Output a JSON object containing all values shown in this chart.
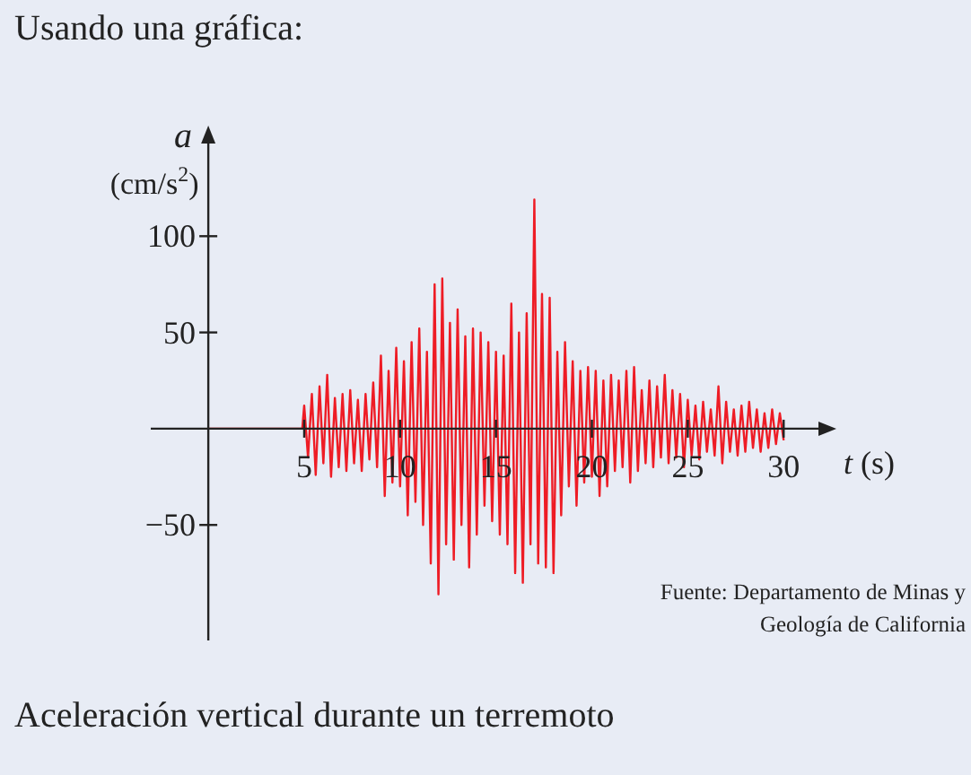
{
  "chart_data": {
    "type": "line",
    "title": "Usando una gráfica:",
    "xlabel": "t (s)",
    "ylabel": "a (cm/s$^{2}$)",
    "annotations": [
      "Fuente: Departamento de Minas y\nGeología de California",
      "Aceleración vertical durante un terremoto"
    ],
    "xlim": [
      -3,
      32
    ],
    "ylim": [
      -110,
      150
    ],
    "xticks": [
      5,
      10,
      15,
      20,
      25,
      30
    ],
    "yticks": [
      {
        "value": -50,
        "label": "−50"
      },
      50,
      100
    ],
    "grid": false,
    "marker": "none",
    "line_style": "solid",
    "series": [
      {
        "color": "#ee1c25",
        "x": [
          0,
          4.5,
          4.9,
          5.0,
          5.2,
          5.4,
          5.6,
          5.8,
          6.0,
          6.2,
          6.4,
          6.6,
          6.8,
          7.0,
          7.2,
          7.4,
          7.6,
          7.8,
          8.0,
          8.2,
          8.4,
          8.6,
          8.8,
          9.0,
          9.2,
          9.4,
          9.6,
          9.8,
          10.0,
          10.2,
          10.4,
          10.6,
          10.8,
          11.0,
          11.2,
          11.4,
          11.6,
          11.8,
          12.0,
          12.2,
          12.4,
          12.6,
          12.8,
          13.0,
          13.2,
          13.4,
          13.6,
          13.8,
          14.0,
          14.2,
          14.4,
          14.6,
          14.8,
          15.0,
          15.2,
          15.4,
          15.6,
          15.8,
          16.0,
          16.2,
          16.4,
          16.6,
          16.8,
          17.0,
          17.2,
          17.4,
          17.6,
          17.8,
          18.0,
          18.2,
          18.4,
          18.6,
          18.8,
          19.0,
          19.2,
          19.4,
          19.6,
          19.8,
          20.0,
          20.2,
          20.4,
          20.6,
          20.8,
          21.0,
          21.2,
          21.4,
          21.6,
          21.8,
          22.0,
          22.2,
          22.4,
          22.6,
          22.8,
          23.0,
          23.2,
          23.4,
          23.6,
          23.8,
          24.0,
          24.2,
          24.4,
          24.6,
          24.8,
          25.0,
          25.2,
          25.4,
          25.6,
          25.8,
          26.0,
          26.2,
          26.4,
          26.6,
          26.8,
          27.0,
          27.2,
          27.4,
          27.6,
          27.8,
          28.0,
          28.2,
          28.4,
          28.6,
          28.8,
          29.0,
          29.2,
          29.4,
          29.6,
          29.8,
          30.0
        ],
        "values": [
          0,
          0,
          0,
          12,
          -15,
          18,
          -24,
          22,
          -18,
          28,
          -25,
          16,
          -20,
          18,
          -22,
          20,
          -18,
          15,
          -22,
          18,
          -16,
          24,
          -20,
          38,
          -35,
          30,
          -28,
          42,
          -30,
          35,
          -45,
          45,
          -38,
          52,
          -50,
          40,
          -70,
          75,
          -86,
          78,
          -60,
          55,
          -68,
          62,
          -50,
          48,
          -72,
          52,
          -55,
          50,
          -40,
          45,
          -48,
          40,
          -55,
          38,
          -60,
          65,
          -75,
          50,
          -80,
          60,
          -60,
          119,
          -70,
          70,
          -72,
          68,
          -75,
          40,
          -45,
          45,
          -30,
          35,
          -40,
          30,
          -28,
          32,
          -25,
          30,
          -35,
          25,
          -30,
          28,
          -22,
          25,
          -20,
          30,
          -28,
          32,
          -22,
          20,
          -18,
          25,
          -20,
          22,
          -15,
          28,
          -18,
          20,
          -15,
          18,
          -20,
          15,
          -14,
          12,
          -16,
          14,
          -12,
          10,
          -14,
          22,
          -18,
          14,
          -12,
          10,
          -14,
          12,
          -12,
          14,
          -10,
          10,
          -12,
          8,
          -10,
          10,
          -8,
          8,
          -6
        ]
      }
    ]
  }
}
